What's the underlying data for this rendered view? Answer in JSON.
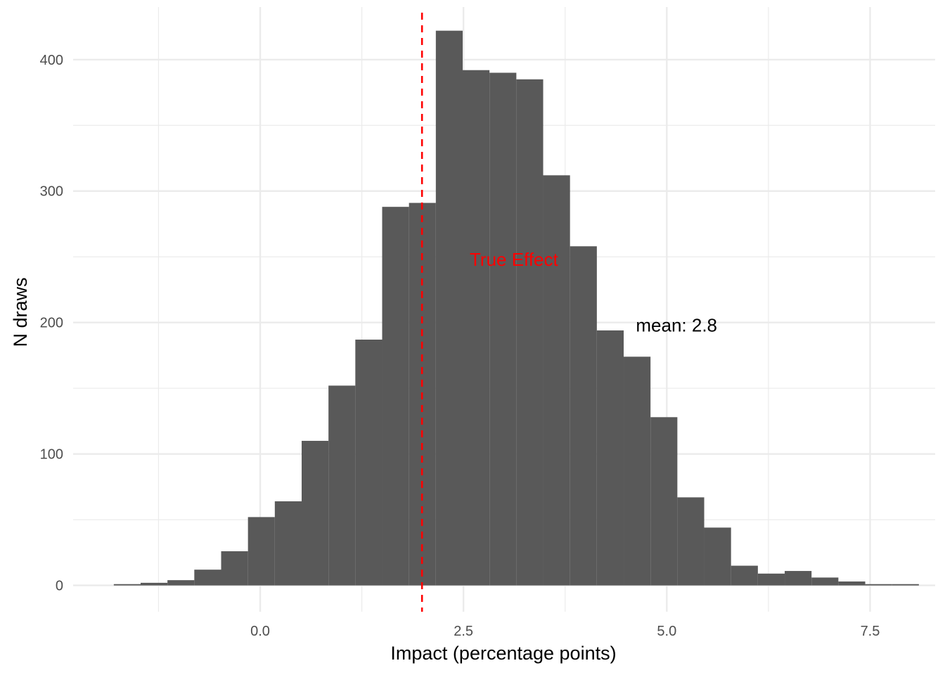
{
  "chart_data": {
    "type": "bar",
    "subtype": "histogram",
    "xlabel": "Impact (percentage points)",
    "ylabel": "N draws",
    "xlim": [
      -2.3,
      8.3
    ],
    "ylim": [
      -20,
      440
    ],
    "xticks": [
      0.0,
      2.5,
      5.0,
      7.5
    ],
    "xtick_labels": [
      "0.0",
      "2.5",
      "5.0",
      "7.5"
    ],
    "xminor": [
      -1.25,
      1.25,
      3.75,
      6.25
    ],
    "yticks": [
      0,
      100,
      200,
      300,
      400
    ],
    "ytick_labels": [
      "0",
      "100",
      "200",
      "300",
      "400"
    ],
    "yminor": [
      50,
      150,
      250,
      350
    ],
    "grid": true,
    "bar_color": "#595959",
    "bins": [
      {
        "x0": -1.8,
        "x1": -1.47,
        "count": 1
      },
      {
        "x0": -1.47,
        "x1": -1.14,
        "count": 2
      },
      {
        "x0": -1.14,
        "x1": -0.81,
        "count": 4
      },
      {
        "x0": -0.81,
        "x1": -0.48,
        "count": 12
      },
      {
        "x0": -0.48,
        "x1": -0.15,
        "count": 26
      },
      {
        "x0": -0.15,
        "x1": 0.18,
        "count": 52
      },
      {
        "x0": 0.18,
        "x1": 0.51,
        "count": 64
      },
      {
        "x0": 0.51,
        "x1": 0.84,
        "count": 110
      },
      {
        "x0": 0.84,
        "x1": 1.17,
        "count": 152
      },
      {
        "x0": 1.17,
        "x1": 1.5,
        "count": 187
      },
      {
        "x0": 1.5,
        "x1": 1.83,
        "count": 288
      },
      {
        "x0": 1.83,
        "x1": 2.16,
        "count": 291
      },
      {
        "x0": 2.16,
        "x1": 2.49,
        "count": 422
      },
      {
        "x0": 2.49,
        "x1": 2.82,
        "count": 392
      },
      {
        "x0": 2.82,
        "x1": 3.15,
        "count": 390
      },
      {
        "x0": 3.15,
        "x1": 3.48,
        "count": 385
      },
      {
        "x0": 3.48,
        "x1": 3.81,
        "count": 312
      },
      {
        "x0": 3.81,
        "x1": 4.14,
        "count": 258
      },
      {
        "x0": 4.14,
        "x1": 4.47,
        "count": 194
      },
      {
        "x0": 4.47,
        "x1": 4.8,
        "count": 174
      },
      {
        "x0": 4.8,
        "x1": 5.13,
        "count": 128
      },
      {
        "x0": 5.13,
        "x1": 5.46,
        "count": 67
      },
      {
        "x0": 5.46,
        "x1": 5.79,
        "count": 44
      },
      {
        "x0": 5.79,
        "x1": 6.12,
        "count": 15
      },
      {
        "x0": 6.12,
        "x1": 6.45,
        "count": 9
      },
      {
        "x0": 6.45,
        "x1": 6.78,
        "count": 11
      },
      {
        "x0": 6.78,
        "x1": 7.11,
        "count": 6
      },
      {
        "x0": 7.11,
        "x1": 7.44,
        "count": 3
      },
      {
        "x0": 7.44,
        "x1": 7.77,
        "count": 1
      },
      {
        "x0": 7.77,
        "x1": 8.1,
        "count": 1
      }
    ],
    "reference_line": {
      "x": 1.99,
      "color": "#ff0000",
      "style": "dashed"
    },
    "annotations": [
      {
        "text": "True Effect",
        "x": 3.12,
        "y": 248,
        "color": "#ff0000"
      },
      {
        "text": "mean: 2.8",
        "x": 5.12,
        "y": 198,
        "color": "#000000"
      }
    ]
  }
}
